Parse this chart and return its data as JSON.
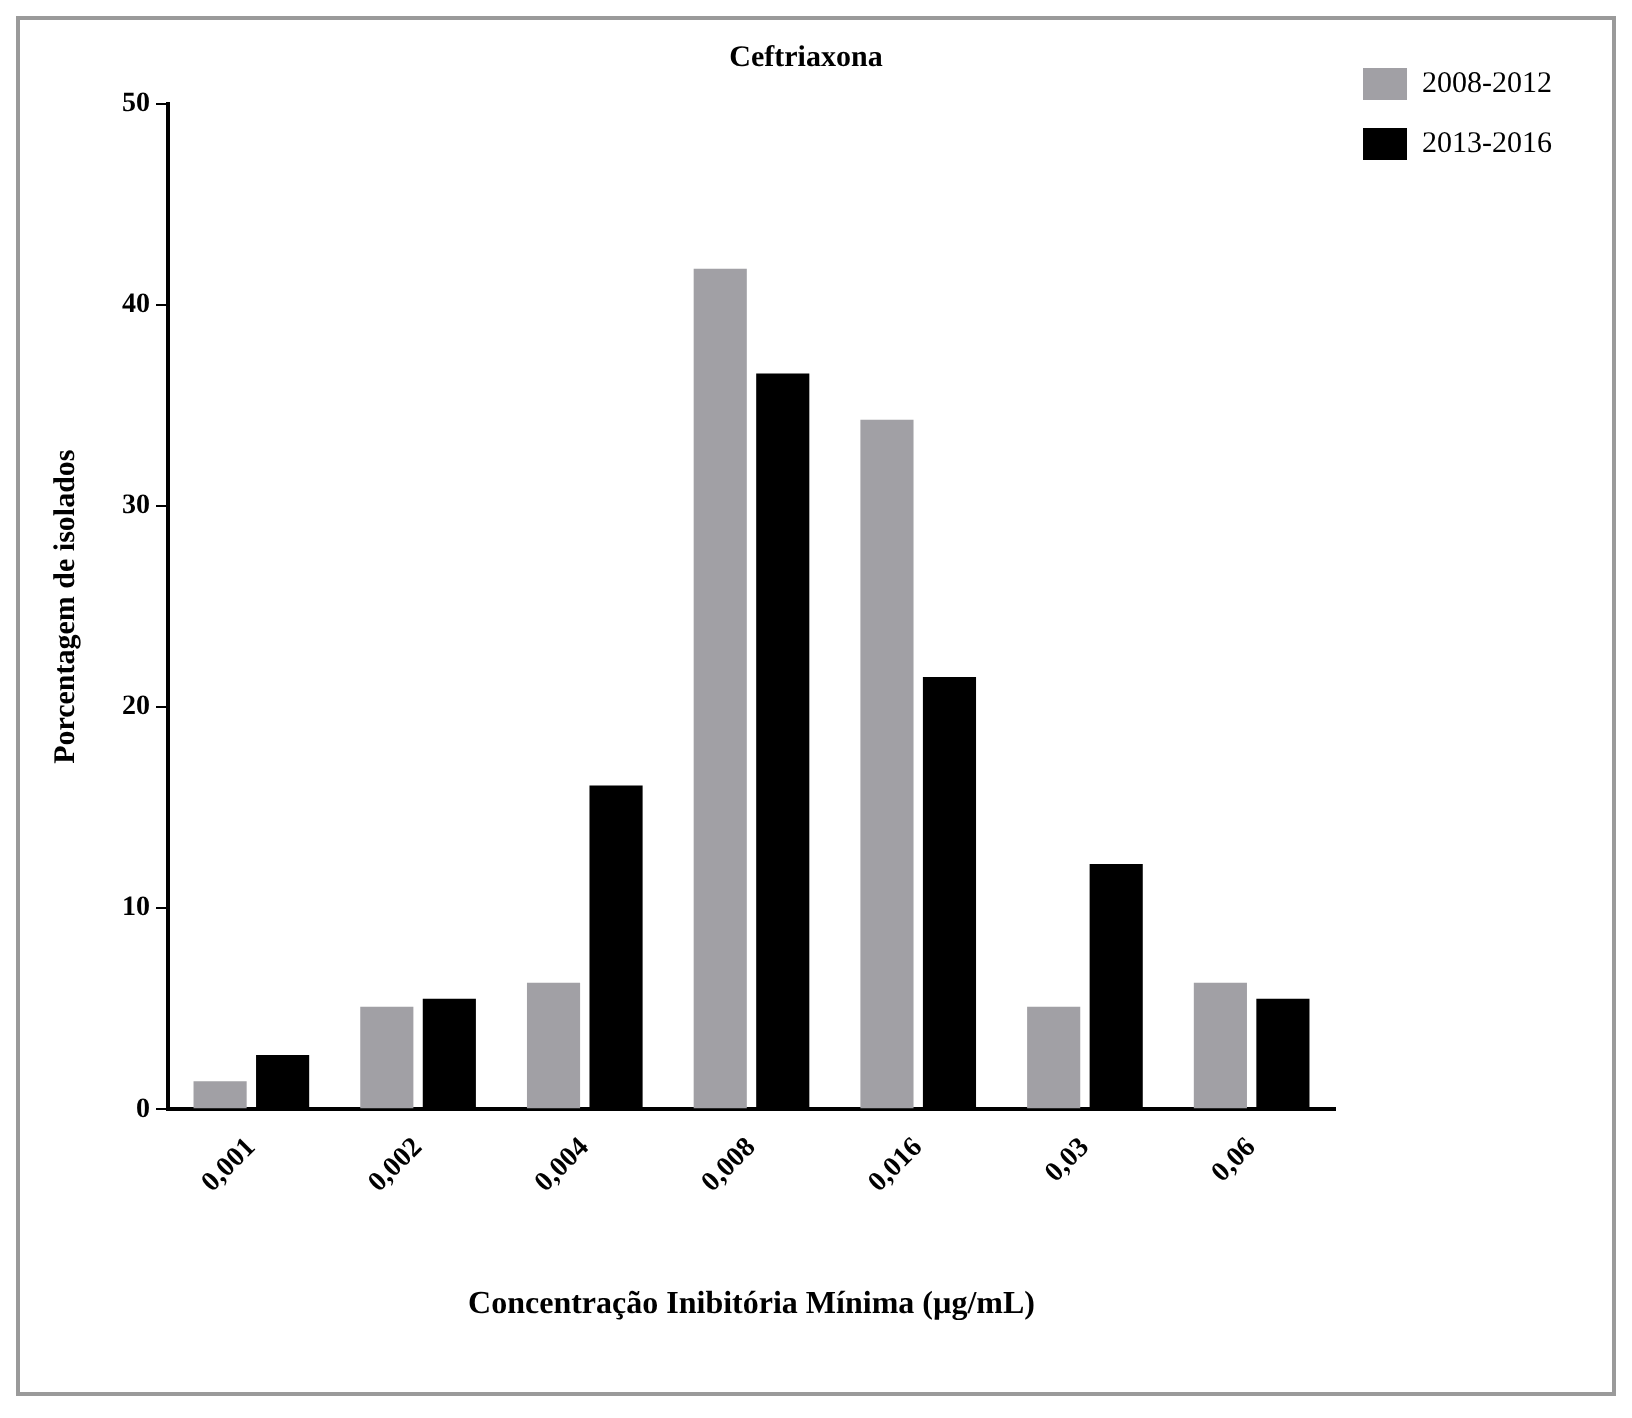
{
  "chart_data": {
    "type": "bar",
    "title": "Ceftriaxona",
    "xlabel": "Concentração Inibitória Mínima (µg/mL)",
    "ylabel": "Porcentagem de isolados",
    "categories": [
      "0,001",
      "0,002",
      "0,004",
      "0,008",
      "0,016",
      "0,03",
      "0,06"
    ],
    "series": [
      {
        "name": "2008-2012",
        "color": "#a1a0a5",
        "values": [
          1.4,
          5.1,
          6.3,
          41.8,
          34.3,
          5.1,
          6.3
        ]
      },
      {
        "name": "2013-2016",
        "color": "#000000",
        "values": [
          2.7,
          5.5,
          16.1,
          36.6,
          21.5,
          12.2,
          5.5
        ]
      }
    ],
    "ylim": [
      0,
      50
    ],
    "yticks": [
      0,
      10,
      20,
      30,
      40,
      50
    ],
    "grid": false,
    "legend": "top right"
  }
}
